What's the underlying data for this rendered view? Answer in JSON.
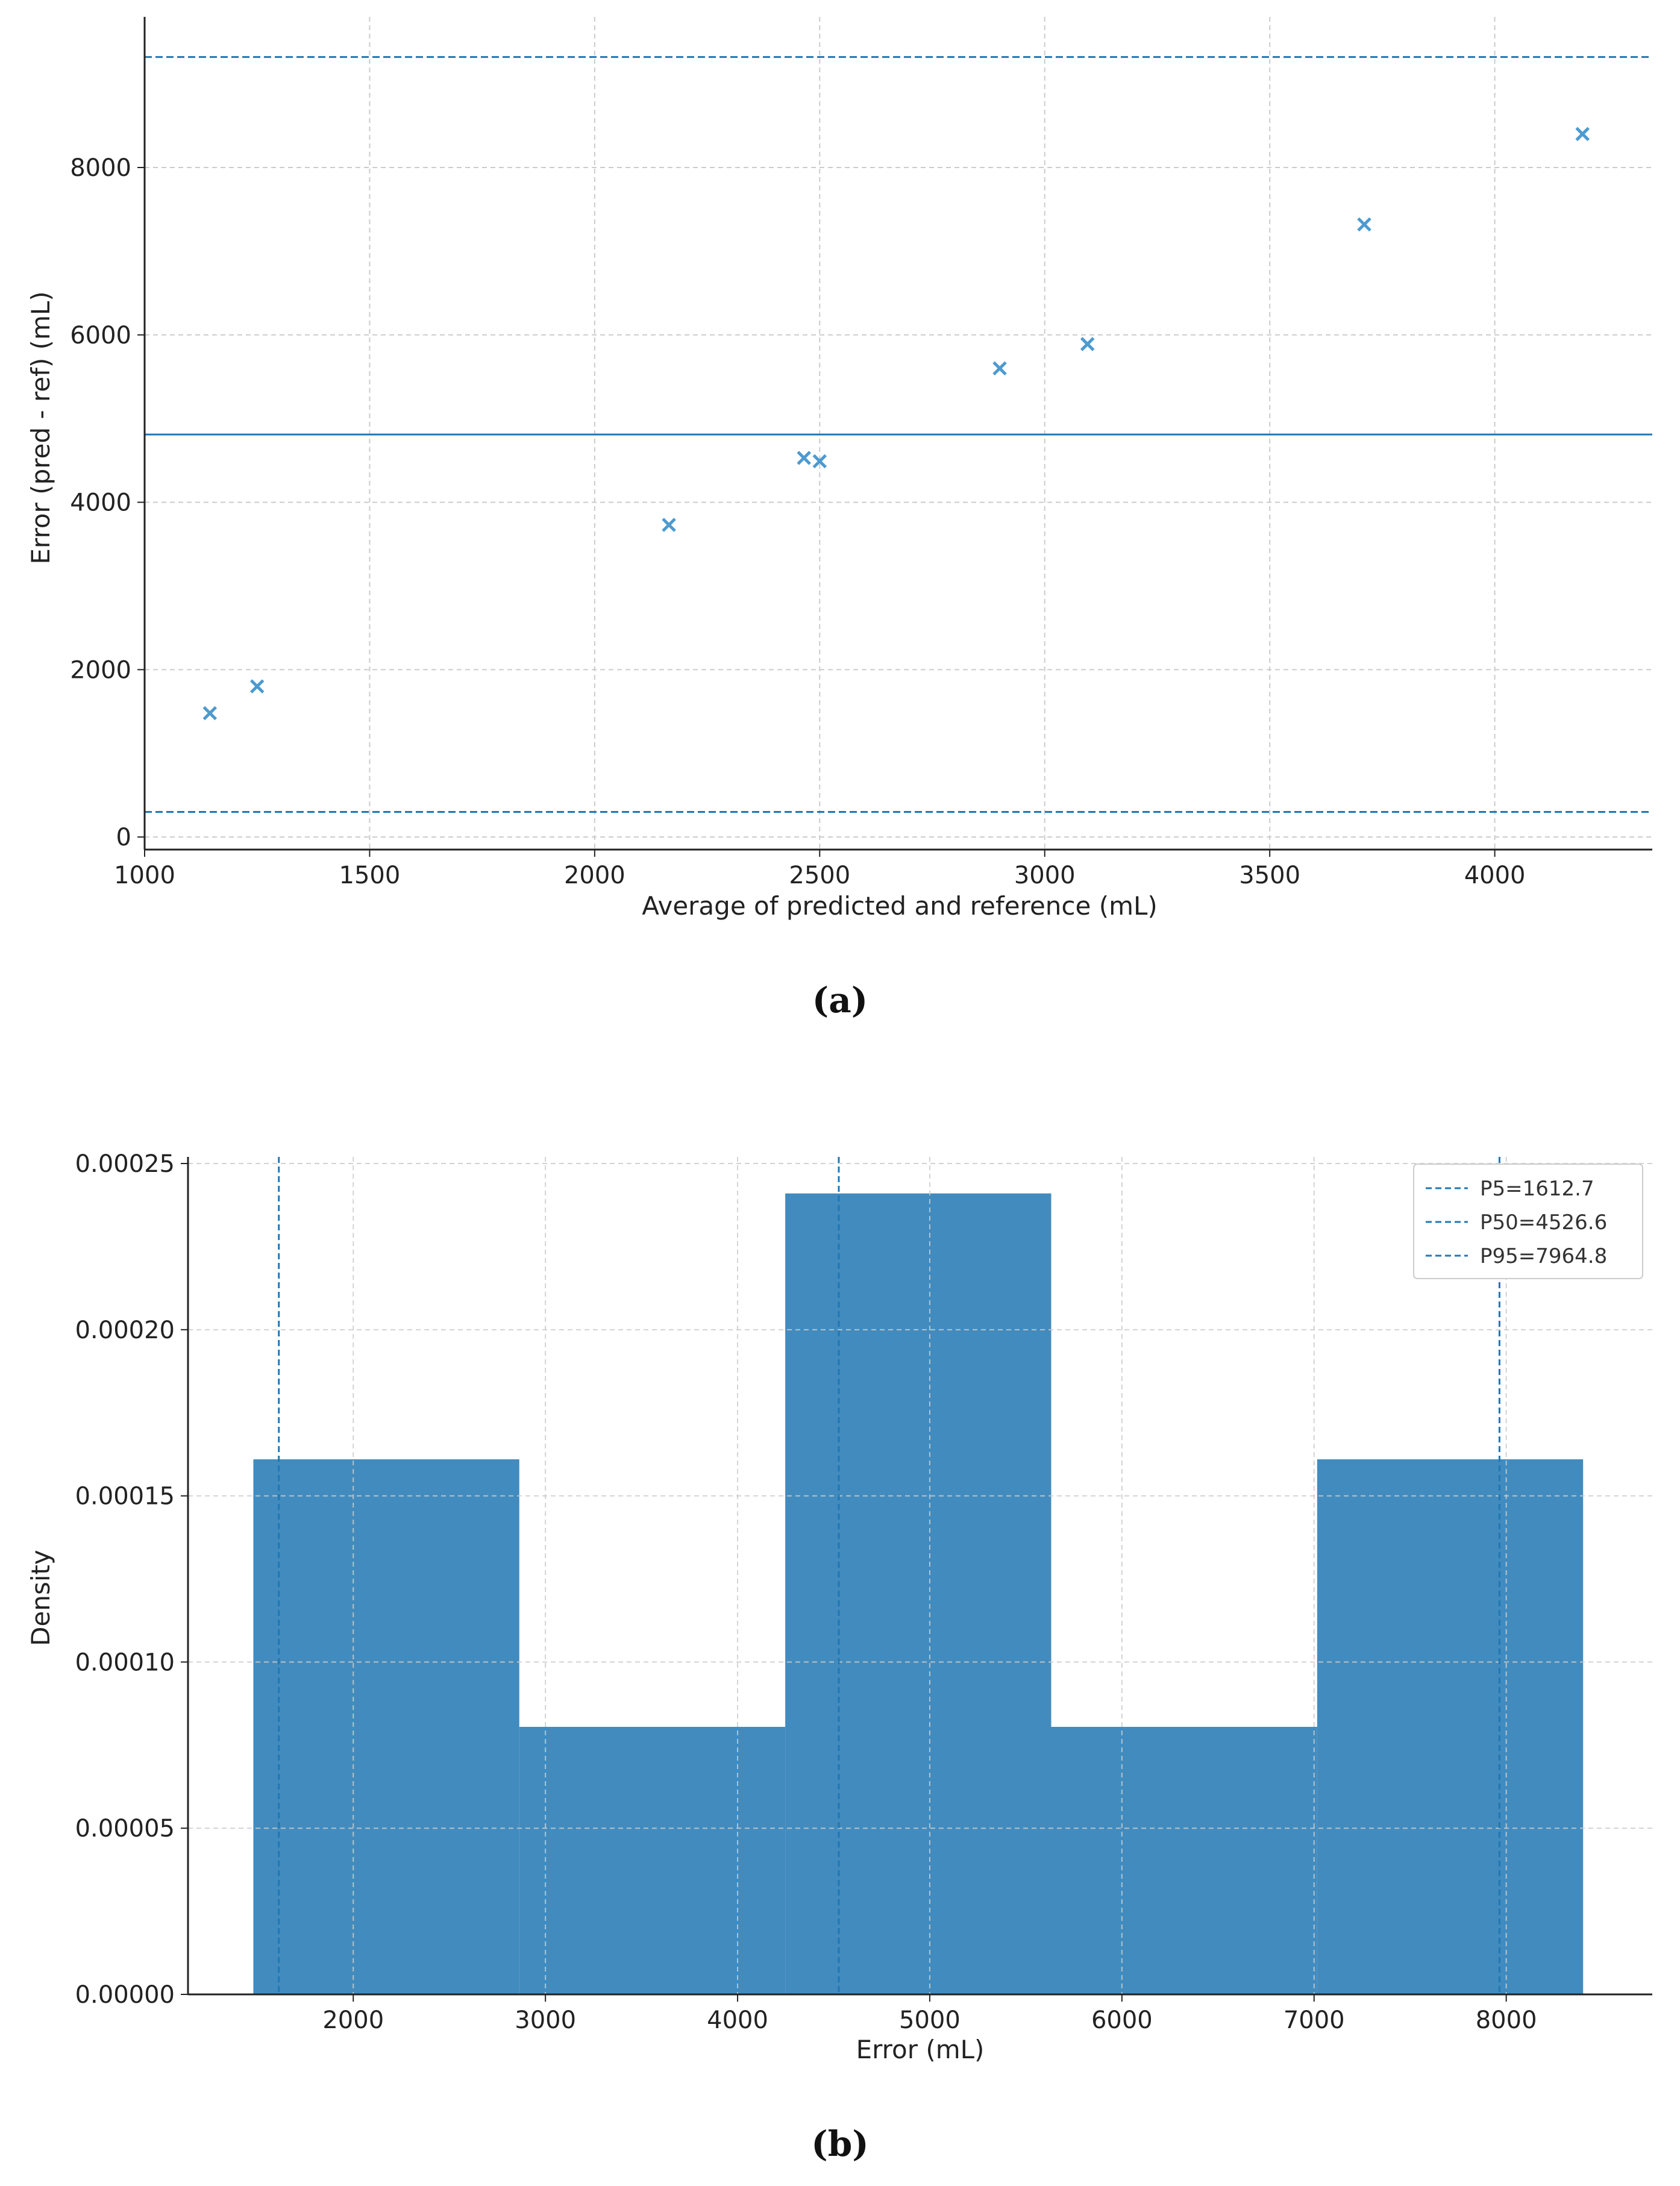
{
  "colors": {
    "accent": "#1f77b4",
    "marker": "#4c9ad0",
    "bar": "#428bbe",
    "grid": "#cccccc",
    "axis": "#222222"
  },
  "chart_data": [
    {
      "type": "scatter",
      "panel_label": "(a)",
      "title": "",
      "xlabel": "Average of predicted and reference (mL)",
      "ylabel": "Error (pred - ref) (mL)",
      "xlim": [
        1000,
        4350
      ],
      "ylim": [
        -150,
        9800
      ],
      "xticks": [
        1000,
        1500,
        2000,
        2500,
        3000,
        3500,
        4000
      ],
      "yticks": [
        0,
        2000,
        4000,
        6000,
        8000
      ],
      "marker": "x",
      "grid": true,
      "points": [
        {
          "x": 1145,
          "y": 1480
        },
        {
          "x": 1250,
          "y": 1800
        },
        {
          "x": 2165,
          "y": 3730
        },
        {
          "x": 2465,
          "y": 4530
        },
        {
          "x": 2500,
          "y": 4490
        },
        {
          "x": 2900,
          "y": 5600
        },
        {
          "x": 3095,
          "y": 5890
        },
        {
          "x": 3710,
          "y": 7320
        },
        {
          "x": 4195,
          "y": 8400
        }
      ],
      "hlines": [
        {
          "y": 9320,
          "style": "dashed"
        },
        {
          "y": 4810,
          "style": "solid"
        },
        {
          "y": 300,
          "style": "dashed"
        }
      ]
    },
    {
      "type": "bar",
      "panel_label": "(b)",
      "title": "",
      "xlabel": "Error (mL)",
      "ylabel": "Density",
      "xlim": [
        1140,
        8760
      ],
      "ylim": [
        0,
        0.000252
      ],
      "xticks": [
        2000,
        3000,
        4000,
        5000,
        6000,
        7000,
        8000
      ],
      "yticks": [
        "0.00000",
        "0.00005",
        "0.00010",
        "0.00015",
        "0.00020",
        "0.00025"
      ],
      "grid": true,
      "bins": [
        {
          "x0": 1480,
          "x1": 2864,
          "density": 0.000161
        },
        {
          "x0": 2864,
          "x1": 4248,
          "density": 8.05e-05
        },
        {
          "x0": 4248,
          "x1": 5632,
          "density": 0.000241
        },
        {
          "x0": 5632,
          "x1": 7016,
          "density": 8.05e-05
        },
        {
          "x0": 7016,
          "x1": 8400,
          "density": 0.000161
        }
      ],
      "vlines": [
        {
          "x": 1612.7,
          "label": "P5=1612.7"
        },
        {
          "x": 4526.6,
          "label": "P50=4526.6"
        },
        {
          "x": 7964.8,
          "label": "P95=7964.8"
        }
      ],
      "legend_position": "top-right"
    }
  ]
}
